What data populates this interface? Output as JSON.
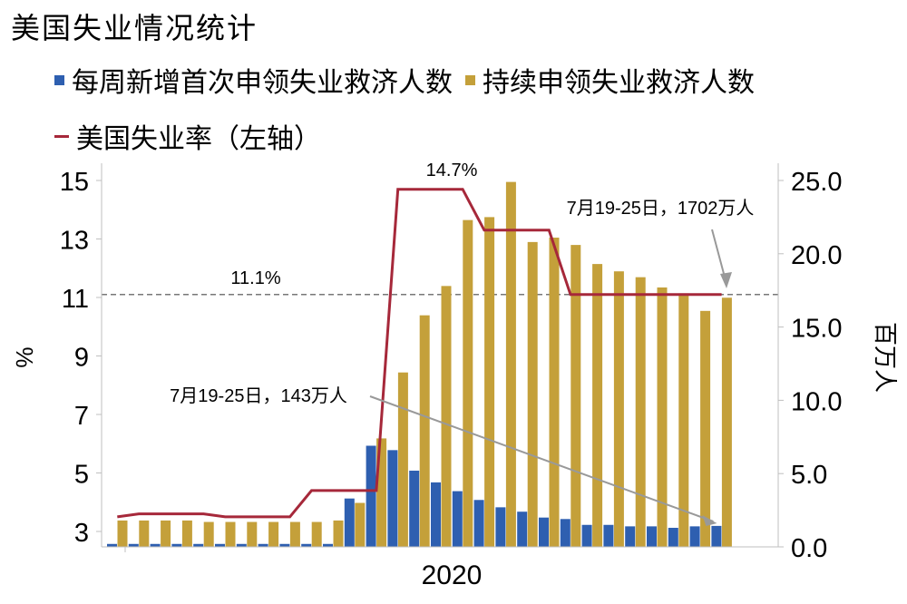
{
  "title": "美国失业情况统计",
  "legend": {
    "initial_claims": "每周新增首次申领失业救济人数",
    "continuing_claims": "持续申领失业救济人数",
    "unemployment_rate": "美国失业率（左轴）"
  },
  "colors": {
    "initial_claims": "#2e5fb0",
    "continuing_claims": "#c4a03a",
    "unemployment_rate": "#a6283a",
    "reference_line": "#777777",
    "arrow": "#999999"
  },
  "chart_data": {
    "type": "bar",
    "title": "美国失业情况统计",
    "xlabel": "2020",
    "y_left_label": "%",
    "y_right_label": "百万人",
    "y_left_lim": [
      2.5,
      15.5
    ],
    "y_left_ticks": [
      "3",
      "5",
      "7",
      "9",
      "11",
      "13",
      "15"
    ],
    "y_right_lim": [
      0,
      25
    ],
    "y_right_ticks": [
      "0.0",
      "5.0",
      "10.0",
      "15.0",
      "20.0",
      "25.0"
    ],
    "x_tick_label": "2020",
    "series": [
      {
        "name": "每周新增首次申领失业救济人数",
        "axis": "right",
        "values": [
          0.2,
          0.2,
          0.2,
          0.2,
          0.2,
          0.2,
          0.2,
          0.2,
          0.2,
          0.2,
          0.2,
          3.3,
          6.9,
          6.6,
          5.2,
          4.4,
          3.8,
          3.2,
          2.7,
          2.4,
          2.0,
          1.9,
          1.5,
          1.5,
          1.4,
          1.4,
          1.3,
          1.4,
          1.43
        ]
      },
      {
        "name": "持续申领失业救济人数",
        "axis": "right",
        "values": [
          1.8,
          1.8,
          1.8,
          1.8,
          1.7,
          1.7,
          1.7,
          1.7,
          1.7,
          1.7,
          1.8,
          3.0,
          7.4,
          11.9,
          15.8,
          17.8,
          22.3,
          22.5,
          24.9,
          20.8,
          21.1,
          20.6,
          19.3,
          18.8,
          18.4,
          17.7,
          17.3,
          16.1,
          17.0
        ]
      },
      {
        "name": "美国失业率（左轴）",
        "axis": "left",
        "type": "line",
        "values": [
          3.5,
          3.6,
          3.6,
          3.6,
          3.6,
          3.5,
          3.5,
          3.5,
          3.5,
          4.4,
          4.4,
          4.4,
          4.4,
          14.7,
          14.7,
          14.7,
          14.7,
          13.3,
          13.3,
          13.3,
          13.3,
          11.1,
          11.1,
          11.1,
          11.1,
          11.1,
          11.1,
          11.1,
          11.1
        ]
      }
    ],
    "reference_line": {
      "axis": "left",
      "value": 11.1,
      "label": "11.1%"
    },
    "annotations": {
      "peak_label": "14.7%",
      "continuing_label": "7月19-25日，1702万人",
      "initial_label": "7月19-25日，143万人"
    }
  }
}
